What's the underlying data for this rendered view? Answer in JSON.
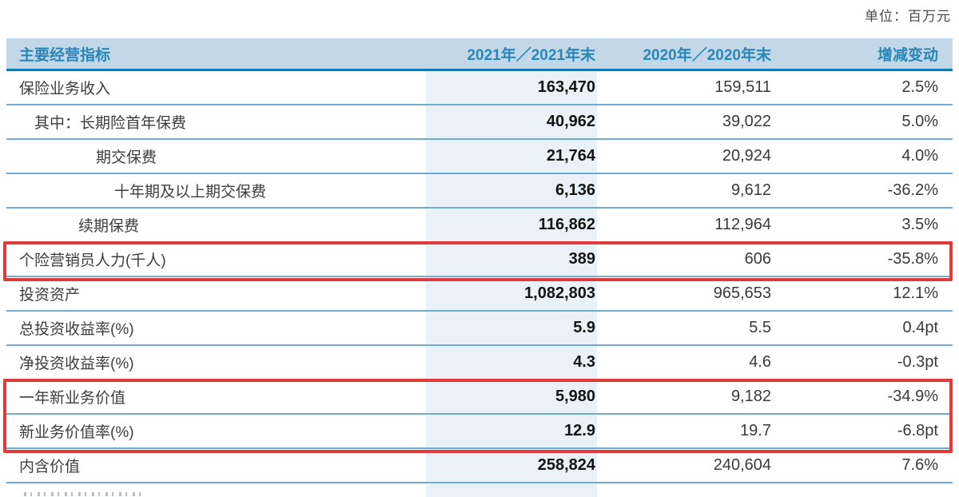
{
  "page": {
    "unit_note": "单位：百万元"
  },
  "table": {
    "headers": [
      "主要经营指标",
      "2021年／2021年末",
      "2020年／2020年末",
      "增减变动"
    ],
    "rows": [
      {
        "label": "保险业务收入",
        "indent": 0,
        "v2021": "163,470",
        "v2020": "159,511",
        "change": "2.5%"
      },
      {
        "label": "其中：长期险首年保费",
        "indent": 1,
        "v2021": "40,962",
        "v2020": "39,022",
        "change": "5.0%"
      },
      {
        "label": "期交保费",
        "indent": 3,
        "v2021": "21,764",
        "v2020": "20,924",
        "change": "4.0%"
      },
      {
        "label": "十年期及以上期交保费",
        "indent": 4,
        "v2021": "6,136",
        "v2020": "9,612",
        "change": "-36.2%"
      },
      {
        "label": "续期保费",
        "indent": 2,
        "v2021": "116,862",
        "v2020": "112,964",
        "change": "3.5%"
      },
      {
        "label": "个险营销员人力(千人)",
        "indent": 0,
        "v2021": "389",
        "v2020": "606",
        "change": "-35.8%"
      },
      {
        "label": "投资资产",
        "indent": 0,
        "v2021": "1,082,803",
        "v2020": "965,653",
        "change": "12.1%"
      },
      {
        "label": "总投资收益率(%)",
        "indent": 0,
        "v2021": "5.9",
        "v2020": "5.5",
        "change": "0.4pt"
      },
      {
        "label": "净投资收益率(%)",
        "indent": 0,
        "v2021": "4.3",
        "v2020": "4.6",
        "change": "-0.3pt"
      },
      {
        "label": "一年新业务价值",
        "indent": 0,
        "v2021": "5,980",
        "v2020": "9,182",
        "change": "-34.9%"
      },
      {
        "label": "新业务价值率(%)",
        "indent": 0,
        "v2021": "12.9",
        "v2020": "19.7",
        "change": "-6.8pt"
      },
      {
        "label": "内含价值",
        "indent": 0,
        "v2021": "258,824",
        "v2020": "240,604",
        "change": "7.6%"
      }
    ],
    "highlight_groups": [
      {
        "start": 5,
        "count": 1
      },
      {
        "start": 9,
        "count": 2
      }
    ]
  },
  "colors": {
    "header_bg": "#c2d8e8",
    "header_text": "#2a86b8",
    "header_line": "#1878ad",
    "row_line": "#6faccf",
    "stripe": "#eaf1f8",
    "highlight_border": "#e03a3a"
  }
}
